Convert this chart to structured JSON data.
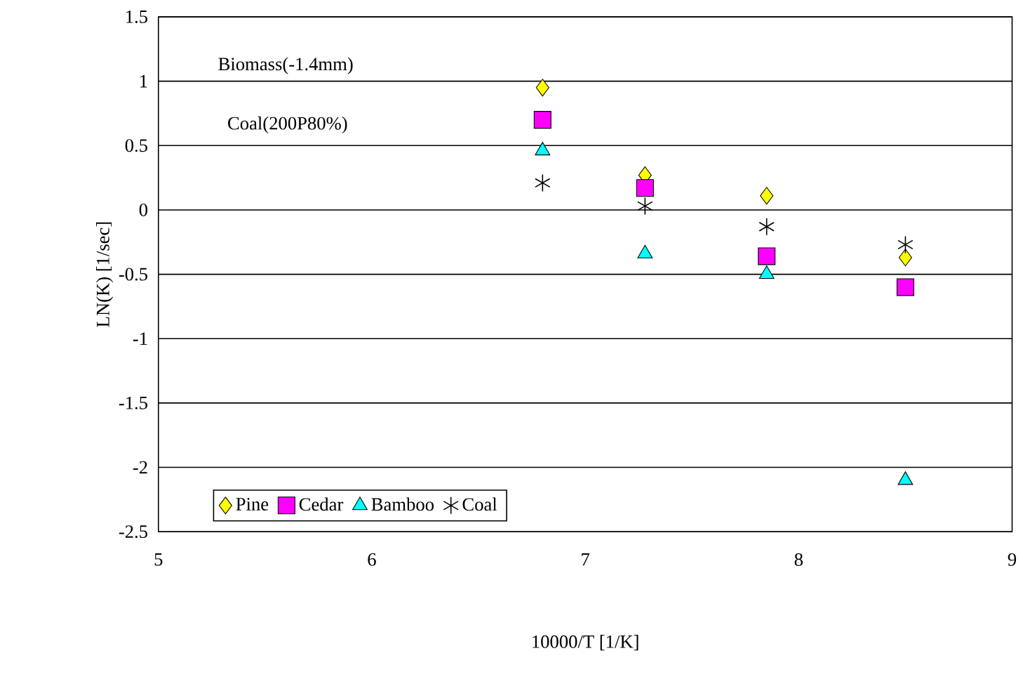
{
  "chart_data": {
    "type": "scatter",
    "xlabel": "10000/T  [1/K]",
    "ylabel": "LN(K)      [1/sec]",
    "annotations": [
      "Biomass(-1.4mm)",
      "Coal(200P80%)"
    ],
    "xlim": [
      5,
      9
    ],
    "ylim": [
      -2.5,
      1.5
    ],
    "xticks": [
      5,
      6,
      7,
      8,
      9
    ],
    "yticks": [
      -2.5,
      -2,
      -1.5,
      -1,
      -0.5,
      0,
      0.5,
      1,
      1.5
    ],
    "grid": "y",
    "legend": "bottom left",
    "series": [
      {
        "name": "Pine",
        "color": "#ffff00",
        "marker": "diamond",
        "x": [
          6.8,
          7.28,
          7.85,
          8.5
        ],
        "values": [
          0.95,
          0.27,
          0.11,
          -0.37
        ]
      },
      {
        "name": "Cedar",
        "color": "#ff00ff",
        "marker": "square",
        "x": [
          6.8,
          7.28,
          7.85,
          8.5
        ],
        "values": [
          0.7,
          0.17,
          -0.36,
          -0.6
        ]
      },
      {
        "name": "Bamboo",
        "color": "#00ffff",
        "marker": "triangle",
        "x": [
          6.8,
          7.28,
          7.85,
          8.5
        ],
        "values": [
          0.46,
          -0.34,
          -0.5,
          -2.1
        ]
      },
      {
        "name": "Coal",
        "color": "#000000",
        "marker": "cross",
        "x": [
          6.8,
          7.28,
          7.85,
          8.5
        ],
        "values": [
          0.21,
          0.03,
          -0.13,
          -0.27
        ]
      }
    ]
  }
}
